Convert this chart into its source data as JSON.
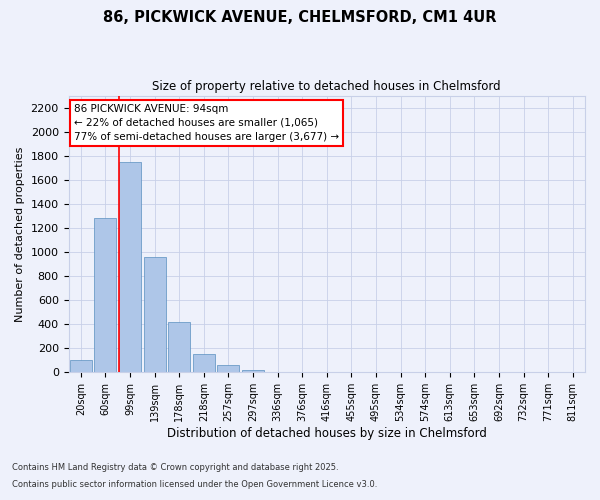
{
  "title_line1": "86, PICKWICK AVENUE, CHELMSFORD, CM1 4UR",
  "title_line2": "Size of property relative to detached houses in Chelmsford",
  "xlabel": "Distribution of detached houses by size in Chelmsford",
  "ylabel": "Number of detached properties",
  "categories": [
    "20sqm",
    "60sqm",
    "99sqm",
    "139sqm",
    "178sqm",
    "218sqm",
    "257sqm",
    "297sqm",
    "336sqm",
    "376sqm",
    "416sqm",
    "455sqm",
    "495sqm",
    "534sqm",
    "574sqm",
    "613sqm",
    "653sqm",
    "692sqm",
    "732sqm",
    "771sqm",
    "811sqm"
  ],
  "values": [
    100,
    1280,
    1750,
    960,
    415,
    150,
    60,
    20,
    5,
    0,
    0,
    0,
    0,
    0,
    0,
    0,
    0,
    0,
    0,
    0,
    0
  ],
  "bar_color": "#aec6e8",
  "bar_edge_color": "#5a8fc0",
  "red_line_index": 2,
  "annotation_text": "86 PICKWICK AVENUE: 94sqm\n← 22% of detached houses are smaller (1,065)\n77% of semi-detached houses are larger (3,677) →",
  "annotation_box_color": "white",
  "annotation_box_edge": "red",
  "ylim": [
    0,
    2300
  ],
  "yticks": [
    0,
    200,
    400,
    600,
    800,
    1000,
    1200,
    1400,
    1600,
    1800,
    2000,
    2200
  ],
  "footer_line1": "Contains HM Land Registry data © Crown copyright and database right 2025.",
  "footer_line2": "Contains public sector information licensed under the Open Government Licence v3.0.",
  "bg_color": "#eef1fb",
  "grid_color": "#c8d0e8"
}
